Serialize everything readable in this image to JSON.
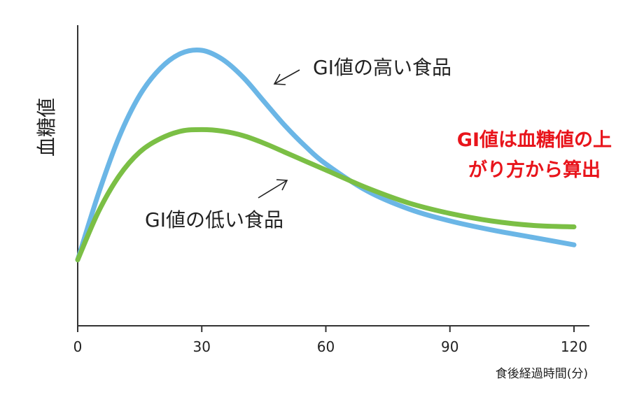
{
  "chart_data": {
    "type": "line",
    "xlabel": "食後経過時間(分)",
    "ylabel": "血糖値",
    "x_ticks": [
      0,
      30,
      60,
      90,
      120
    ],
    "xlim": [
      0,
      120
    ],
    "y_ticks_shown": false,
    "grid": false,
    "series": [
      {
        "name": "GI値の高い食品",
        "color": "#6bb6e6",
        "x": [
          0,
          5,
          10,
          15,
          20,
          25,
          30,
          35,
          40,
          45,
          50,
          55,
          60,
          70,
          80,
          90,
          100,
          110,
          120
        ],
        "values": [
          3.0,
          5.2,
          7.1,
          8.5,
          9.4,
          9.9,
          10.0,
          9.7,
          9.1,
          8.3,
          7.5,
          6.8,
          6.2,
          5.3,
          4.7,
          4.3,
          4.0,
          3.75,
          3.5
        ]
      },
      {
        "name": "GI値の低い食品",
        "color": "#7bbf45",
        "x": [
          0,
          5,
          10,
          15,
          20,
          25,
          30,
          35,
          40,
          45,
          50,
          55,
          60,
          70,
          80,
          90,
          100,
          110,
          120
        ],
        "values": [
          3.0,
          4.6,
          5.8,
          6.6,
          7.05,
          7.3,
          7.35,
          7.3,
          7.15,
          6.9,
          6.6,
          6.3,
          6.0,
          5.4,
          4.9,
          4.55,
          4.3,
          4.15,
          4.1
        ]
      }
    ],
    "annotations": [
      {
        "text": "GI値の高い食品"
      },
      {
        "text": "GI値の低い食品"
      }
    ],
    "headline": [
      "GI値は血糖値の上",
      "がり方から算出"
    ],
    "headline_color": "#e8141b"
  }
}
